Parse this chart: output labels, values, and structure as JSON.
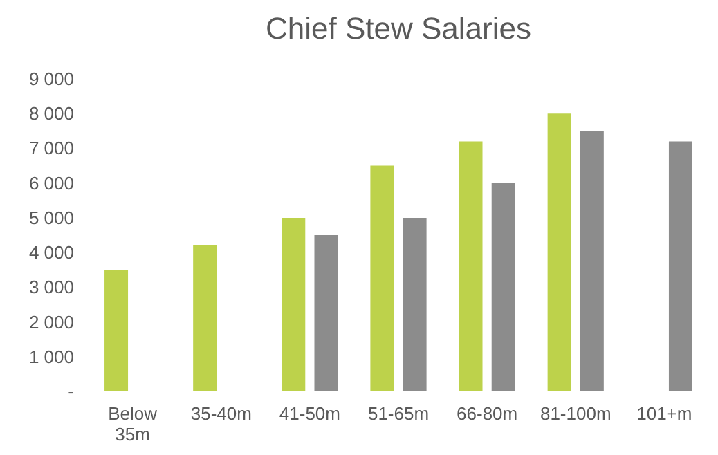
{
  "chart_data": {
    "type": "bar",
    "title": "Chief Stew Salaries",
    "categories": [
      "Below 35m",
      "35-40m",
      "41-50m",
      "51-65m",
      "66-80m",
      "81-100m",
      "101+m"
    ],
    "series": [
      {
        "color": "#bdd24b",
        "values": [
          3500,
          4200,
          5000,
          6500,
          7200,
          8000,
          null
        ]
      },
      {
        "color": "#8c8c8c",
        "values": [
          null,
          null,
          4500,
          5000,
          6000,
          7500,
          7200
        ]
      }
    ],
    "ylim": [
      0,
      9000
    ],
    "yticks": [
      {
        "value": 0,
        "label": "-"
      },
      {
        "value": 1000,
        "label": "1 000"
      },
      {
        "value": 2000,
        "label": "2 000"
      },
      {
        "value": 3000,
        "label": "3 000"
      },
      {
        "value": 4000,
        "label": "4 000"
      },
      {
        "value": 5000,
        "label": "5 000"
      },
      {
        "value": 6000,
        "label": "6 000"
      },
      {
        "value": 7000,
        "label": "7 000"
      },
      {
        "value": 8000,
        "label": "8 000"
      },
      {
        "value": 9000,
        "label": "9 000"
      }
    ],
    "grid": false,
    "legend": false
  }
}
